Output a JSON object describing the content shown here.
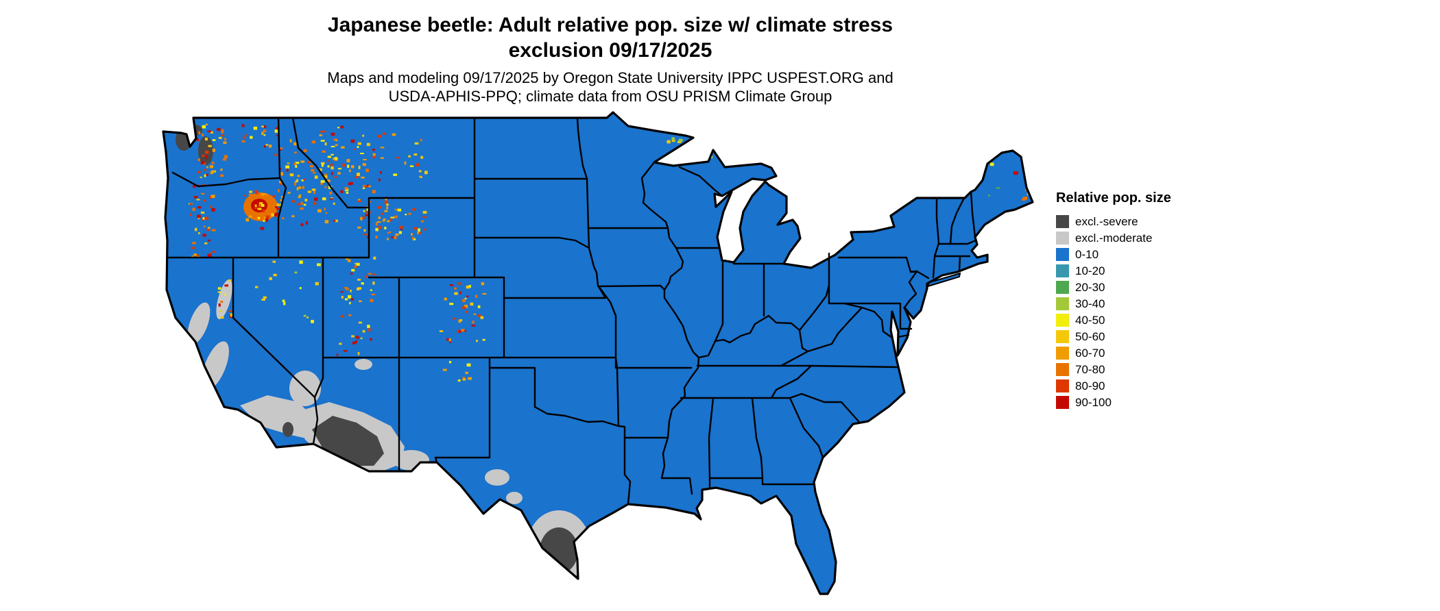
{
  "title": {
    "line1": "Japanese beetle: Adult relative pop. size w/ climate stress",
    "line2": "exclusion 09/17/2025"
  },
  "subtitle": {
    "line1": "Maps and modeling 09/17/2025 by Oregon State University IPPC USPEST.ORG and",
    "line2": "USDA-APHIS-PPQ; climate data from OSU PRISM Climate Group"
  },
  "legend": {
    "title": "Relative pop. size",
    "items": [
      {
        "label": "excl.-severe",
        "color": "#474747"
      },
      {
        "label": "excl.-moderate",
        "color": "#c8c8c8"
      },
      {
        "label": "0-10",
        "color": "#1a73cd"
      },
      {
        "label": "10-20",
        "color": "#3899ae"
      },
      {
        "label": "20-30",
        "color": "#4fa84f"
      },
      {
        "label": "30-40",
        "color": "#a3c93a"
      },
      {
        "label": "40-50",
        "color": "#f2ee0c"
      },
      {
        "label": "50-60",
        "color": "#f3c80a"
      },
      {
        "label": "60-70",
        "color": "#f09c00"
      },
      {
        "label": "70-80",
        "color": "#e87200"
      },
      {
        "label": "80-90",
        "color": "#de3700"
      },
      {
        "label": "90-100",
        "color": "#c40a00"
      }
    ]
  },
  "map": {
    "base_fill": "#1a73cd",
    "border_color": "#000000",
    "background": "#ffffff"
  }
}
